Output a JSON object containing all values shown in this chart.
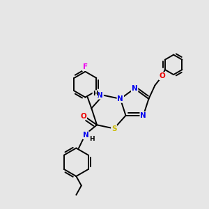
{
  "bg_color": "#e6e6e6",
  "bond_color": "#000000",
  "atom_colors": {
    "N": "#0000ee",
    "O": "#ee0000",
    "S": "#ccbb00",
    "F": "#ee00ee",
    "C": "#000000",
    "H": "#000000"
  },
  "lw": 1.4,
  "fs": 7.5
}
